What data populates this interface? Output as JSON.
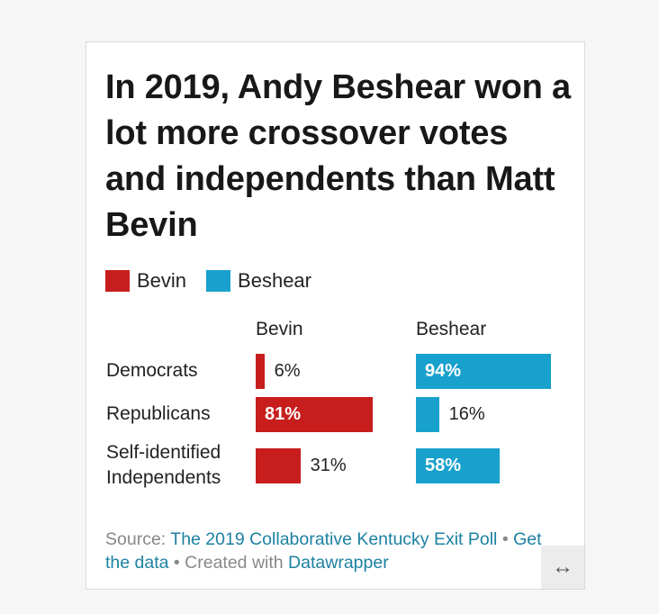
{
  "title": "In 2019, Andy Beshear won a lot more crossover votes and independents than Matt Bevin",
  "legend": [
    {
      "label": "Bevin",
      "color": "#c71e1d"
    },
    {
      "label": "Beshear",
      "color": "#18a1cd"
    }
  ],
  "chart_data": {
    "type": "bar",
    "title": "In 2019, Andy Beshear won a lot more crossover votes and independents than Matt Bevin",
    "categories": [
      "Democrats",
      "Republicans",
      "Self-identified Independents"
    ],
    "series": [
      {
        "name": "Bevin",
        "values": [
          6,
          81,
          31
        ],
        "labels": [
          "6%",
          "81%",
          "31%"
        ],
        "color": "#c71e1d"
      },
      {
        "name": "Beshear",
        "values": [
          94,
          16,
          58
        ],
        "labels": [
          "94%",
          "16%",
          "58%"
        ],
        "color": "#18a1cd"
      }
    ],
    "xlim": [
      0,
      100
    ],
    "grid": false,
    "legend_position": "top-left"
  },
  "footer": {
    "source_prefix": "Source: ",
    "source_link": "The 2019 Collaborative Kentucky Exit Poll",
    "separator": " • ",
    "get_data": "Get the data",
    "created_with_prefix": "Created with ",
    "created_with_link": "Datawrapper"
  },
  "icons": {
    "resize": "resize-horizontal-icon"
  }
}
